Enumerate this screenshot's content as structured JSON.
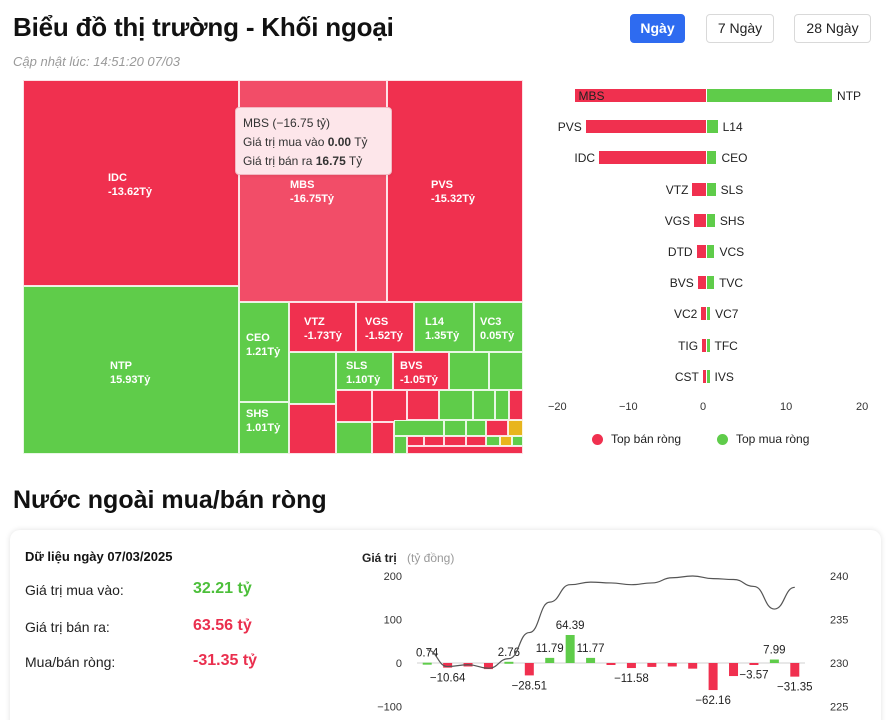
{
  "header": {
    "title": "Biểu đồ thị trường - Khối ngoại",
    "updated": "Cập nhật lúc: 14:51:20 07/03",
    "periods": [
      {
        "label": "Ngày",
        "active": true
      },
      {
        "label": "7 Ngày",
        "active": false
      },
      {
        "label": "28 Ngày",
        "active": false
      }
    ]
  },
  "colors": {
    "sell": "#f0304f",
    "buy": "#5fcc4a",
    "sell_hover": "#f24d68",
    "gold": "#e8b51d"
  },
  "treemap": {
    "tiles": [
      {
        "name": "IDC",
        "value": "-13.62Tỷ",
        "side": "sell"
      },
      {
        "name": "MBS",
        "value": "-16.75Tỷ",
        "side": "sell",
        "hover": true
      },
      {
        "name": "PVS",
        "value": "-15.32Tỷ",
        "side": "sell"
      },
      {
        "name": "NTP",
        "value": "15.93Tỷ",
        "side": "buy"
      },
      {
        "name": "CEO",
        "value": "1.21Tỷ",
        "side": "buy"
      },
      {
        "name": "SHS",
        "value": "1.01Tỷ",
        "side": "buy"
      },
      {
        "name": "VTZ",
        "value": "-1.73Tỷ",
        "side": "sell"
      },
      {
        "name": "VGS",
        "value": "-1.52Tỷ",
        "side": "sell"
      },
      {
        "name": "L14",
        "value": "1.35Tỷ",
        "side": "buy"
      },
      {
        "name": "VC3",
        "value": "0.05Tỷ",
        "side": "buy"
      },
      {
        "name": "SLS",
        "value": "1.10Tỷ",
        "side": "buy"
      },
      {
        "name": "BVS",
        "value": "-1.05Tỷ",
        "side": "sell"
      }
    ],
    "tooltip": {
      "title": "MBS (−16.75 tỷ)",
      "buy_label": "Giá trị mua vào",
      "buy_value": "0.00",
      "sell_label": "Giá trị bán ra",
      "sell_value": "16.75",
      "unit": "Tỷ"
    }
  },
  "top_chart": {
    "rows": [
      {
        "sell": "MBS",
        "sell_val": -16.75,
        "buy": "NTP",
        "buy_val": 15.93
      },
      {
        "sell": "PVS",
        "sell_val": -15.32,
        "buy": "L14",
        "buy_val": 1.35
      },
      {
        "sell": "IDC",
        "sell_val": -13.62,
        "buy": "CEO",
        "buy_val": 1.21
      },
      {
        "sell": "VTZ",
        "sell_val": -1.73,
        "buy": "SLS",
        "buy_val": 1.1
      },
      {
        "sell": "VGS",
        "sell_val": -1.52,
        "buy": "SHS",
        "buy_val": 1.01
      },
      {
        "sell": "DTD",
        "sell_val": -1.2,
        "buy": "VCS",
        "buy_val": 0.95
      },
      {
        "sell": "BVS",
        "sell_val": -1.05,
        "buy": "TVC",
        "buy_val": 0.9
      },
      {
        "sell": "VC2",
        "sell_val": -0.6,
        "buy": "VC7",
        "buy_val": 0.4
      },
      {
        "sell": "TIG",
        "sell_val": -0.5,
        "buy": "TFC",
        "buy_val": 0.3
      },
      {
        "sell": "CST",
        "sell_val": -0.4,
        "buy": "IVS",
        "buy_val": 0.2
      }
    ],
    "ticks": [
      "−20",
      "−10",
      "0",
      "10",
      "20"
    ],
    "legend_sell": "Top bán ròng",
    "legend_buy": "Top mua ròng"
  },
  "section2": {
    "title": "Nước ngoài mua/bán ròng",
    "date_label": "Dữ liệu ngày 07/03/2025",
    "buy_label": "Giá trị mua vào:",
    "buy_value": "32.21 tỷ",
    "sell_label": "Giá trị bán ra:",
    "sell_value": "63.56 tỷ",
    "net_label": "Mua/bán ròng:",
    "net_value": "-31.35 tỷ"
  },
  "chart_data": {
    "type": "bar",
    "ylabel": "Giá trị",
    "ylabel_unit": "(tỷ đồng)",
    "left_ticks": [
      "200",
      "100",
      "0",
      "−100"
    ],
    "right_ticks": [
      "240",
      "235",
      "230",
      "225"
    ],
    "ylim": [
      -100,
      200
    ],
    "y2lim": [
      225,
      240
    ],
    "values": [
      0.74,
      -10.64,
      -8,
      -14,
      2.76,
      -28.51,
      11.79,
      64.39,
      11.77,
      -3,
      -11.58,
      -9,
      -8,
      -13,
      -62.16,
      -30,
      -3.57,
      7.99,
      -31.35
    ],
    "labels": [
      "0.74",
      "−10.64",
      "",
      "",
      "2.76",
      "−28.51",
      "11.79",
      "64.39",
      "11.77",
      "",
      "−11.58",
      "",
      "",
      "",
      "−62.16",
      "",
      "−3.57",
      "7.99",
      "−31.35"
    ],
    "line": [
      231.5,
      229.6,
      229.8,
      229.4,
      230.5,
      233.5,
      237.0,
      239.0,
      239.3,
      239.2,
      239.0,
      239.2,
      239.8,
      240.0,
      239.7,
      239.6,
      238.8,
      236.2,
      238.7
    ]
  }
}
